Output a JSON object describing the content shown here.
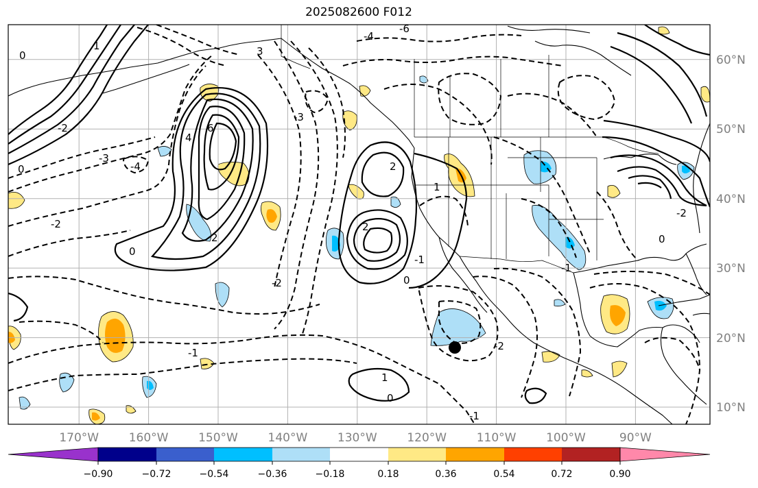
{
  "title": "2025082600 F012",
  "map": {
    "projection": "plate carree",
    "lon_range_deg": [
      -180,
      -79
    ],
    "lat_range_deg": [
      7.5,
      65
    ],
    "grid": true,
    "contour_field": "solid lines positive, dashed lines negative",
    "marker": {
      "label": "black dot",
      "lon": -116,
      "lat": 19
    }
  },
  "axis_labels": {
    "lon": [
      "170°W",
      "160°W",
      "150°W",
      "140°W",
      "130°W",
      "120°W",
      "110°W",
      "100°W",
      "90°W"
    ],
    "lat": [
      "60°N",
      "50°N",
      "40°N",
      "30°N",
      "20°N",
      "10°N"
    ]
  },
  "contour_labels": [
    "6",
    "4",
    "2",
    "0",
    "-2",
    "-3",
    "-4",
    "-6",
    "1",
    "-1",
    "3",
    "-1",
    "2",
    "0",
    "-2",
    "-4",
    "0",
    "-1",
    "1",
    "-2",
    "2",
    "-3",
    "0",
    "-2",
    "0",
    "1",
    "-1",
    "0",
    "-2"
  ],
  "colorbar": {
    "levels": [
      "−0.90",
      "−0.72",
      "−0.54",
      "−0.36",
      "−0.18",
      "0.18",
      "0.36",
      "0.54",
      "0.72",
      "0.90"
    ],
    "colors": [
      "#9932cc",
      "#00008b",
      "#3a5fcd",
      "#00bfff",
      "#aedff7",
      "#ffffff",
      "#ffe985",
      "#ffa500",
      "#ff4000",
      "#b22222",
      "#ff88aa",
      "#ff88aa"
    ],
    "extend": "both"
  }
}
